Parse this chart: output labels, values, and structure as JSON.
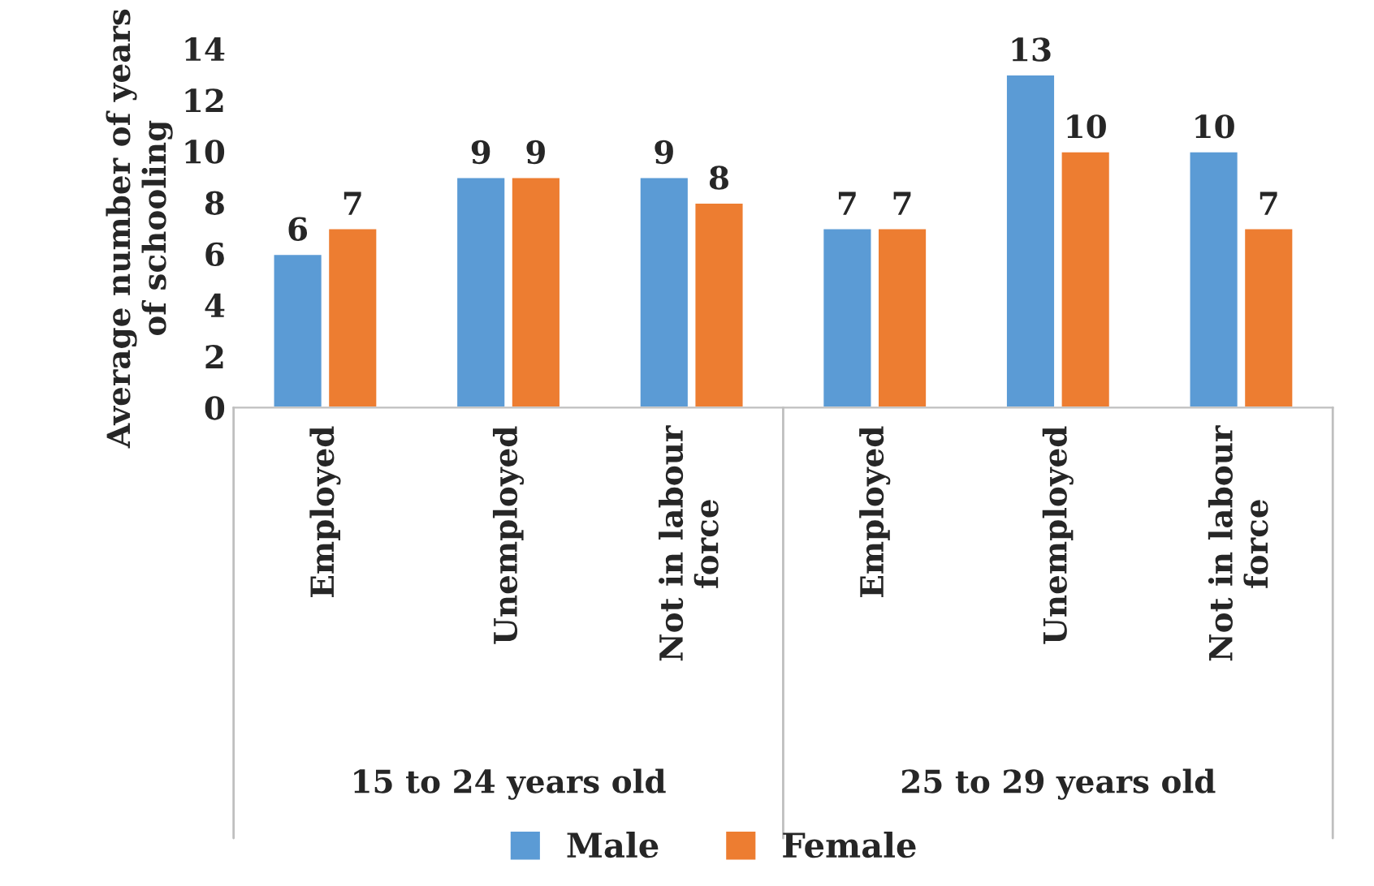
{
  "chart_data": {
    "type": "bar",
    "ylabel": "Average number of years of schooling",
    "categories": [
      "Employed",
      "Unemployed",
      "Not in labour\nforce",
      "Employed",
      "Unemployed",
      "Not in labour\nforce"
    ],
    "series": [
      {
        "name": "Male",
        "color": "#5b9bd5",
        "values": [
          6,
          9,
          9,
          7,
          13,
          10
        ]
      },
      {
        "name": "Female",
        "color": "#ed7d31",
        "values": [
          7,
          9,
          8,
          7,
          10,
          7
        ]
      }
    ],
    "ylim": [
      0,
      14
    ],
    "yticks": [
      0,
      2,
      4,
      6,
      8,
      10,
      12,
      14
    ],
    "grid": false,
    "legend": "bottom",
    "data_labels": true,
    "annotations": [
      "15 to 24 years old",
      "25 to 29 years old"
    ]
  }
}
